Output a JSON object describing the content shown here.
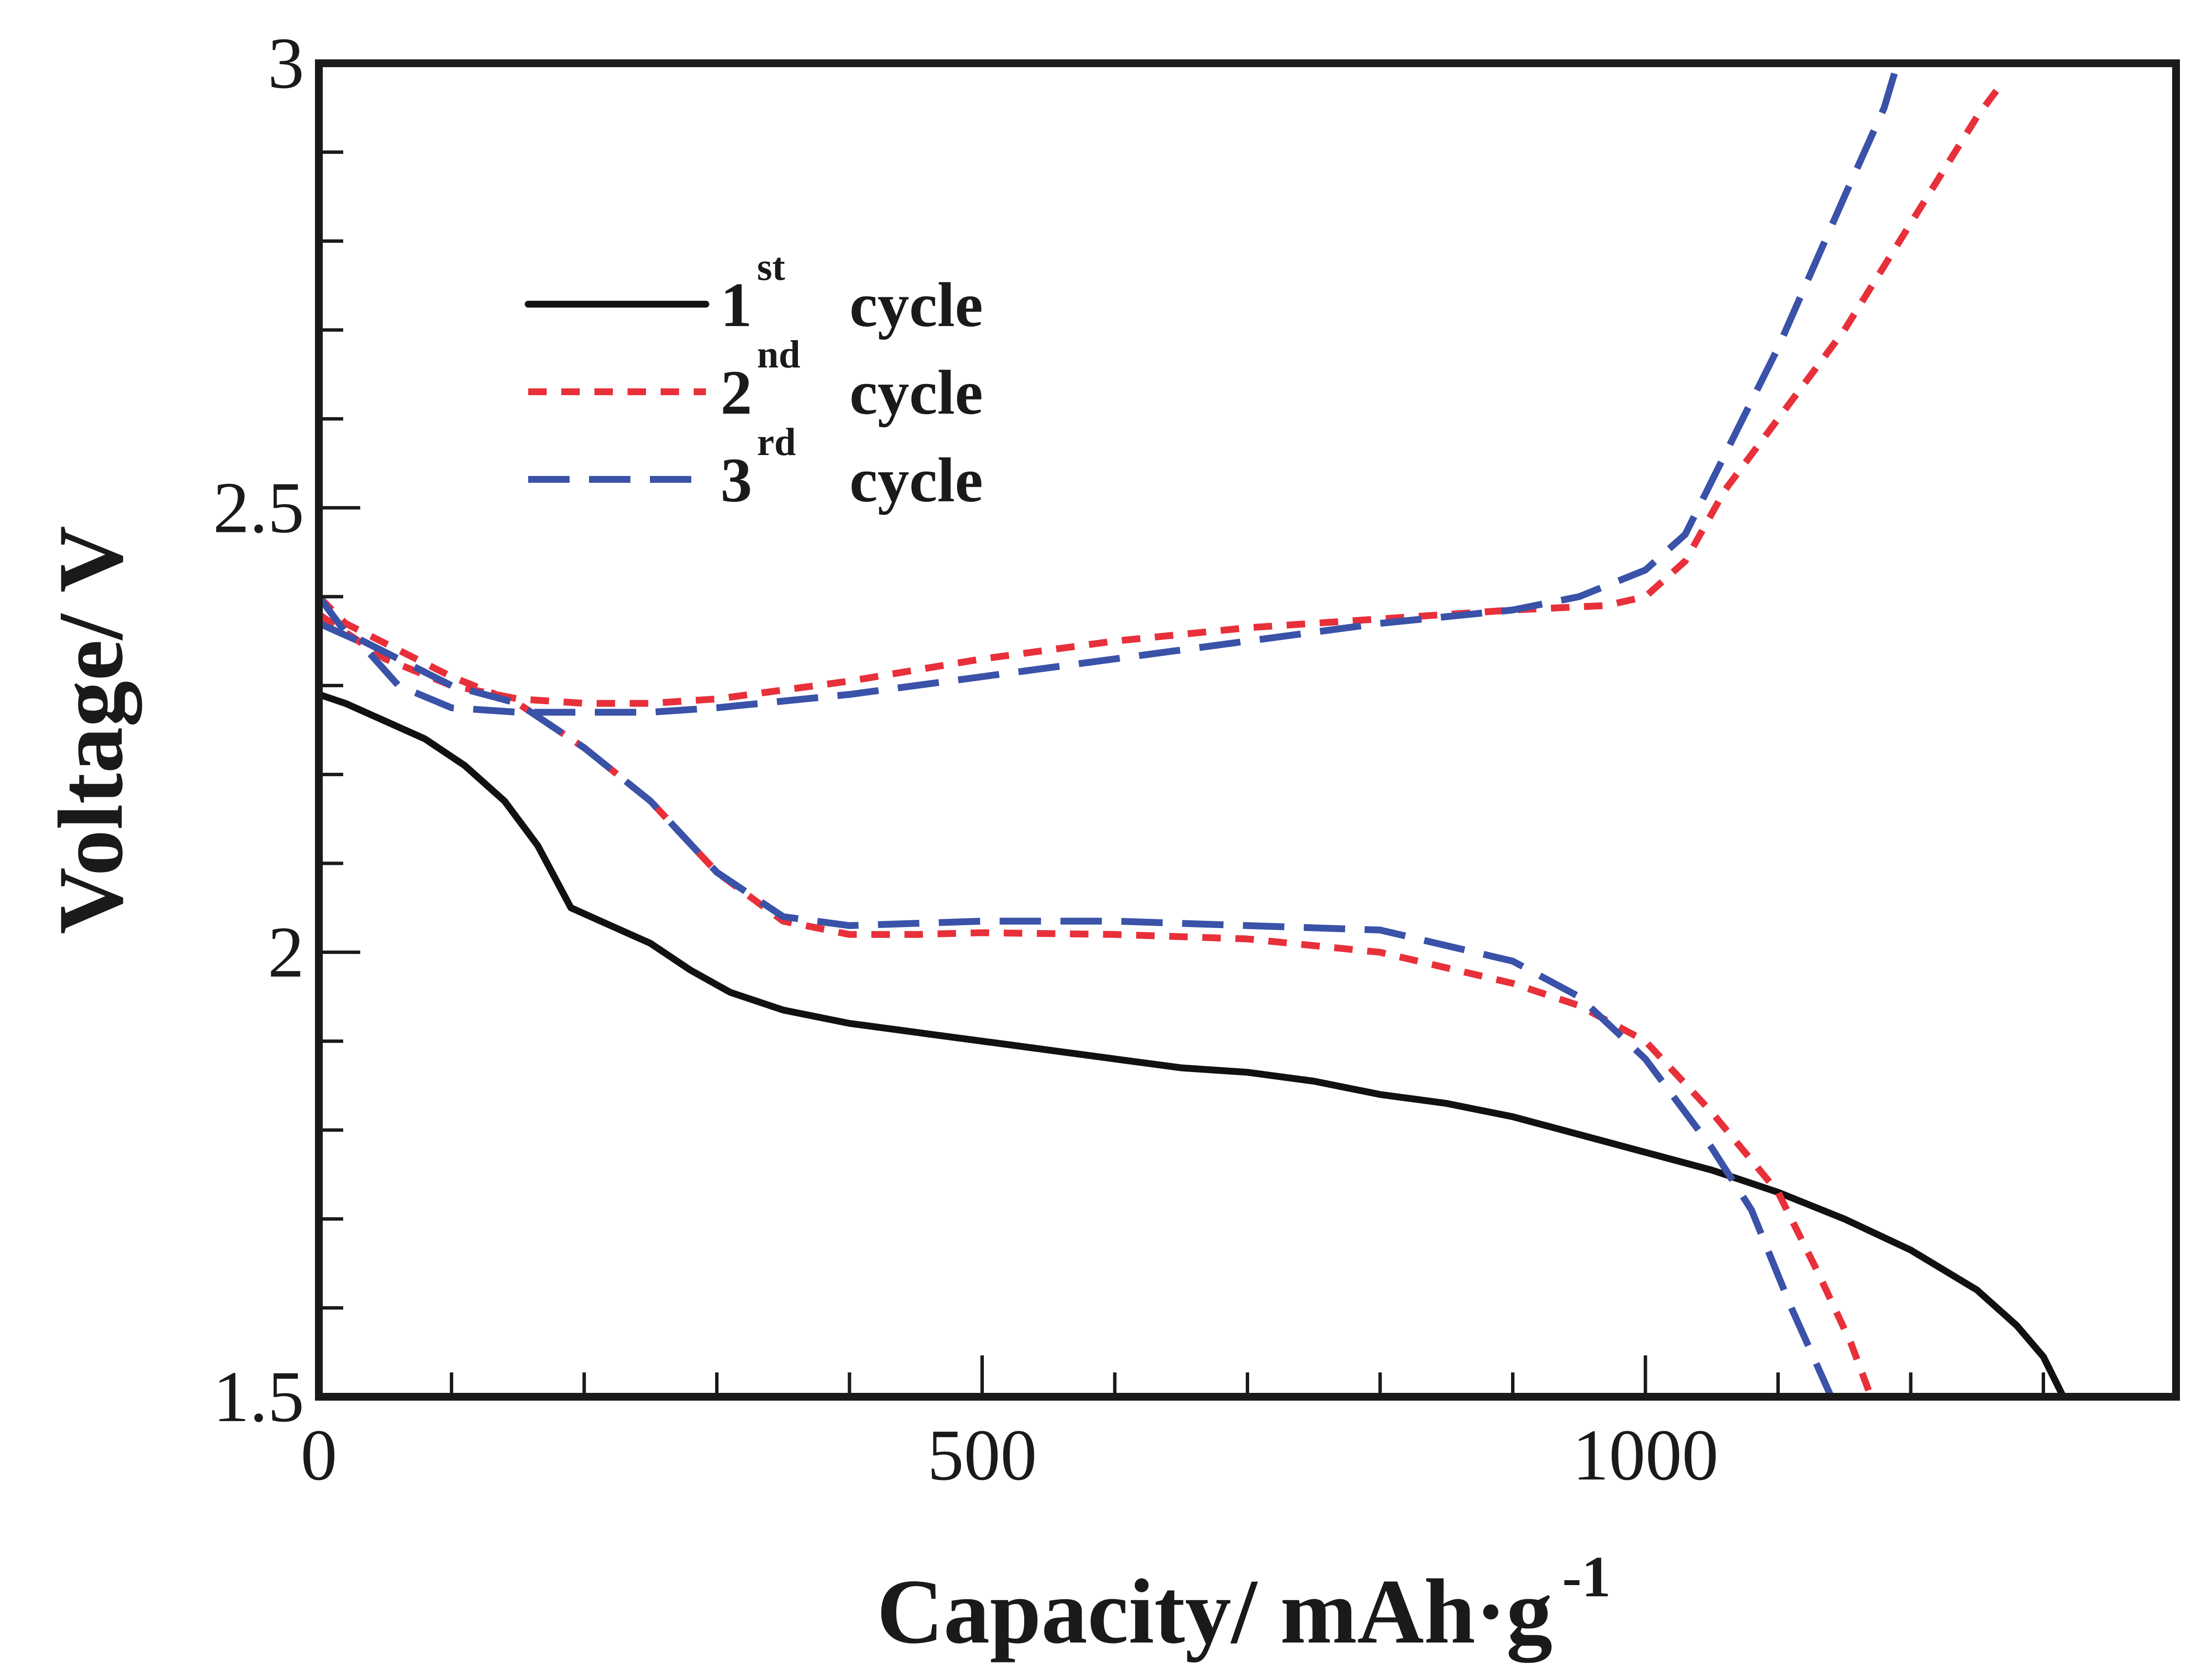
{
  "chart_data": {
    "type": "line",
    "title": "",
    "xlabel": "Capacity/ mAh·g",
    "xlabel_sup": "-1",
    "ylabel": "Voltage/ V",
    "xlim": [
      0,
      1400
    ],
    "ylim": [
      1.5,
      3.0
    ],
    "xticks": [
      0,
      500,
      1000
    ],
    "xtick_labels": [
      "0",
      "500",
      "1000"
    ],
    "yticks": [
      1.5,
      2.0,
      2.5,
      3.0
    ],
    "ytick_labels": [
      "1.5",
      "2",
      "2.5",
      "3"
    ],
    "x_minor_step": 100,
    "y_minor_step": 0.1,
    "grid": false,
    "legend_position": "upper-left",
    "series": [
      {
        "name": "1st cycle",
        "legend_number": "1",
        "legend_sup": "st",
        "legend_word": "cycle",
        "color": "#111111",
        "dash": "solid",
        "curves": [
          [
            [
              0,
              2.29
            ],
            [
              20,
              2.28
            ],
            [
              50,
              2.26
            ],
            [
              80,
              2.24
            ],
            [
              110,
              2.21
            ],
            [
              140,
              2.17
            ],
            [
              165,
              2.12
            ],
            [
              190,
              2.05
            ],
            [
              220,
              2.03
            ],
            [
              250,
              2.01
            ],
            [
              280,
              1.98
            ],
            [
              310,
              1.955
            ],
            [
              350,
              1.935
            ],
            [
              400,
              1.92
            ],
            [
              450,
              1.91
            ],
            [
              500,
              1.9
            ],
            [
              550,
              1.89
            ],
            [
              600,
              1.88
            ],
            [
              650,
              1.87
            ],
            [
              700,
              1.865
            ],
            [
              750,
              1.855
            ],
            [
              800,
              1.84
            ],
            [
              850,
              1.83
            ],
            [
              900,
              1.815
            ],
            [
              950,
              1.795
            ],
            [
              1000,
              1.775
            ],
            [
              1050,
              1.755
            ],
            [
              1100,
              1.73
            ],
            [
              1150,
              1.7
            ],
            [
              1200,
              1.665
            ],
            [
              1250,
              1.62
            ],
            [
              1280,
              1.58
            ],
            [
              1300,
              1.545
            ],
            [
              1315,
              1.5
            ]
          ]
        ]
      },
      {
        "name": "2nd cycle",
        "legend_number": "2",
        "legend_sup": "nd",
        "legend_word": "cycle",
        "color": "#e8303a",
        "dash": "dotted",
        "curves": [
          [
            [
              0,
              2.4
            ],
            [
              20,
              2.37
            ],
            [
              60,
              2.34
            ],
            [
              100,
              2.31
            ],
            [
              150,
              2.28
            ],
            [
              200,
              2.23
            ],
            [
              250,
              2.17
            ],
            [
              300,
              2.09
            ],
            [
              350,
              2.035
            ],
            [
              400,
              2.02
            ],
            [
              450,
              2.02
            ],
            [
              500,
              2.022
            ],
            [
              600,
              2.02
            ],
            [
              700,
              2.015
            ],
            [
              800,
              2.0
            ],
            [
              900,
              1.965
            ],
            [
              950,
              1.94
            ],
            [
              1000,
              1.9
            ],
            [
              1050,
              1.82
            ],
            [
              1100,
              1.73
            ],
            [
              1130,
              1.64
            ],
            [
              1155,
              1.56
            ],
            [
              1170,
              1.5
            ]
          ],
          [
            [
              0,
              2.38
            ],
            [
              50,
              2.33
            ],
            [
              100,
              2.3
            ],
            [
              150,
              2.285
            ],
            [
              200,
              2.28
            ],
            [
              250,
              2.28
            ],
            [
              300,
              2.285
            ],
            [
              400,
              2.305
            ],
            [
              500,
              2.33
            ],
            [
              600,
              2.35
            ],
            [
              700,
              2.365
            ],
            [
              800,
              2.375
            ],
            [
              900,
              2.385
            ],
            [
              970,
              2.39
            ],
            [
              1000,
              2.4
            ],
            [
              1030,
              2.44
            ],
            [
              1060,
              2.52
            ],
            [
              1100,
              2.6
            ],
            [
              1150,
              2.7
            ],
            [
              1200,
              2.82
            ],
            [
              1250,
              2.94
            ],
            [
              1270,
              2.98
            ]
          ]
        ]
      },
      {
        "name": "3rd cycle",
        "legend_number": "3",
        "legend_sup": "rd",
        "legend_word": "cycle",
        "color": "#3a52a8",
        "dash": "dashed",
        "curves": [
          [
            [
              0,
              2.4
            ],
            [
              20,
              2.36
            ],
            [
              60,
              2.33
            ],
            [
              100,
              2.3
            ],
            [
              150,
              2.28
            ],
            [
              200,
              2.23
            ],
            [
              250,
              2.17
            ],
            [
              300,
              2.09
            ],
            [
              350,
              2.04
            ],
            [
              400,
              2.03
            ],
            [
              500,
              2.035
            ],
            [
              600,
              2.035
            ],
            [
              700,
              2.03
            ],
            [
              800,
              2.025
            ],
            [
              900,
              1.99
            ],
            [
              950,
              1.95
            ],
            [
              1000,
              1.88
            ],
            [
              1050,
              1.78
            ],
            [
              1080,
              1.71
            ],
            [
              1110,
              1.6
            ],
            [
              1140,
              1.5
            ]
          ],
          [
            [
              0,
              2.37
            ],
            [
              30,
              2.35
            ],
            [
              60,
              2.3
            ],
            [
              100,
              2.275
            ],
            [
              150,
              2.27
            ],
            [
              200,
              2.27
            ],
            [
              250,
              2.27
            ],
            [
              300,
              2.275
            ],
            [
              400,
              2.29
            ],
            [
              500,
              2.31
            ],
            [
              600,
              2.33
            ],
            [
              700,
              2.35
            ],
            [
              800,
              2.37
            ],
            [
              900,
              2.385
            ],
            [
              950,
              2.4
            ],
            [
              1000,
              2.43
            ],
            [
              1030,
              2.47
            ],
            [
              1060,
              2.56
            ],
            [
              1100,
              2.68
            ],
            [
              1150,
              2.85
            ],
            [
              1180,
              2.95
            ],
            [
              1190,
              3.0
            ]
          ]
        ]
      }
    ]
  }
}
